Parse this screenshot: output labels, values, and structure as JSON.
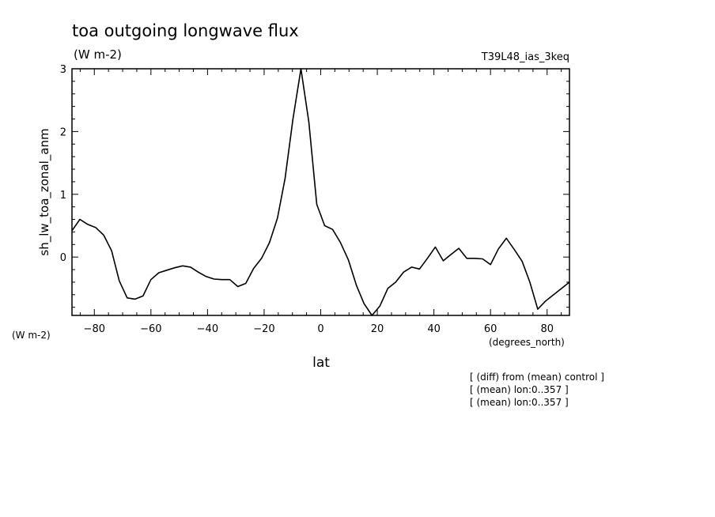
{
  "title": "toa outgoing longwave flux",
  "units": "(W m-2)",
  "run_label": "T39L48_ias_3keq",
  "y_units_label": "(W m-2)",
  "x_units_label": "(degrees_north)",
  "notes": [
    "[ (diff) from (mean) control ]",
    "[ (mean) lon:0..357 ]",
    "[ (mean) lon:0..357 ]"
  ],
  "chart_data": {
    "type": "line",
    "xlabel": "lat",
    "ylabel": "sh_lw_toa_zonal_anm",
    "xlim": [
      -87.9,
      87.9
    ],
    "ylim": [
      -0.93,
      3.0
    ],
    "xticks": [
      -80,
      -60,
      -40,
      -20,
      0,
      20,
      40,
      60,
      80
    ],
    "yticks": [
      0,
      1,
      2,
      3
    ],
    "x": [
      -87.9,
      -85.1,
      -82.3,
      -79.5,
      -76.7,
      -73.9,
      -71.2,
      -68.4,
      -65.6,
      -62.8,
      -60.0,
      -57.2,
      -54.4,
      -51.6,
      -48.8,
      -46.0,
      -43.3,
      -40.5,
      -37.7,
      -34.9,
      -32.1,
      -29.3,
      -26.5,
      -23.7,
      -20.9,
      -18.1,
      -15.3,
      -12.6,
      -9.8,
      -7.0,
      -4.2,
      -1.4,
      1.4,
      4.2,
      7.0,
      9.8,
      12.6,
      15.3,
      18.1,
      20.9,
      23.7,
      26.5,
      29.3,
      32.1,
      34.9,
      37.7,
      40.5,
      43.3,
      46.0,
      48.8,
      51.6,
      54.4,
      57.2,
      60.0,
      62.8,
      65.6,
      68.4,
      71.2,
      73.9,
      76.7,
      79.5,
      82.3,
      85.1,
      87.9
    ],
    "values": [
      0.42,
      0.6,
      0.52,
      0.47,
      0.35,
      0.1,
      -0.38,
      -0.65,
      -0.67,
      -0.62,
      -0.36,
      -0.25,
      -0.21,
      -0.17,
      -0.14,
      -0.16,
      -0.24,
      -0.31,
      -0.35,
      -0.36,
      -0.36,
      -0.47,
      -0.42,
      -0.18,
      -0.02,
      0.23,
      0.62,
      1.25,
      2.2,
      3.0,
      2.15,
      0.84,
      0.5,
      0.44,
      0.23,
      -0.05,
      -0.45,
      -0.74,
      -0.93,
      -0.78,
      -0.5,
      -0.4,
      -0.24,
      -0.16,
      -0.19,
      -0.02,
      0.16,
      -0.06,
      0.04,
      0.14,
      -0.02,
      -0.02,
      -0.03,
      -0.12,
      0.13,
      0.3,
      0.12,
      -0.07,
      -0.4,
      -0.83,
      -0.7,
      -0.6,
      -0.5,
      -0.4
    ],
    "grid": false,
    "legend": "none"
  }
}
